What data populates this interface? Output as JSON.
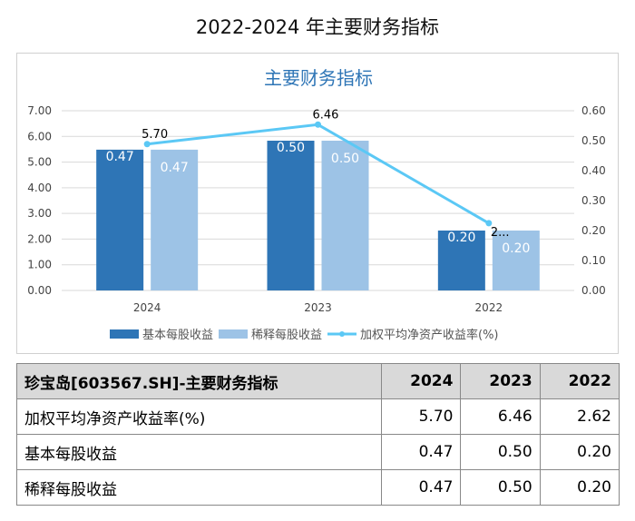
{
  "page_title": "2022-2024 年主要财务指标",
  "chart_data": {
    "type": "bar+line",
    "title": "主要财务指标",
    "categories": [
      "2024",
      "2023",
      "2022"
    ],
    "series": [
      {
        "name": "基本每股收益",
        "type": "bar",
        "axis": "right",
        "color": "#2e75b6",
        "values": [
          0.47,
          0.5,
          0.2
        ],
        "labels": [
          "0.47",
          "0.50",
          "0.20"
        ]
      },
      {
        "name": "稀释每股收益",
        "type": "bar",
        "axis": "right",
        "color": "#9dc3e6",
        "values": [
          0.47,
          0.5,
          0.2
        ],
        "labels": [
          "0.47",
          "0.50",
          "0.20"
        ]
      },
      {
        "name": "加权平均净资产收益率(%)",
        "type": "line",
        "axis": "left",
        "color": "#5bc8f5",
        "values": [
          5.7,
          6.46,
          2.62
        ],
        "labels": [
          "5.70",
          "6.46",
          "2..."
        ]
      }
    ],
    "left_axis": {
      "ylim": [
        0,
        7
      ],
      "ticks": [
        "0.00",
        "1.00",
        "2.00",
        "3.00",
        "4.00",
        "5.00",
        "6.00",
        "7.00"
      ]
    },
    "right_axis": {
      "ylim": [
        0,
        0.6
      ],
      "ticks": [
        "0.00",
        "0.10",
        "0.20",
        "0.30",
        "0.40",
        "0.50",
        "0.60"
      ]
    },
    "grid": true,
    "legend": "bottom"
  },
  "table": {
    "headers": [
      "珍宝岛[603567.SH]-主要财务指标",
      "2024",
      "2023",
      "2022"
    ],
    "rows": [
      [
        "加权平均净资产收益率(%)",
        "5.70",
        "6.46",
        "2.62"
      ],
      [
        "基本每股收益",
        "0.47",
        "0.50",
        "0.20"
      ],
      [
        "稀释每股收益",
        "0.47",
        "0.50",
        "0.20"
      ]
    ]
  }
}
